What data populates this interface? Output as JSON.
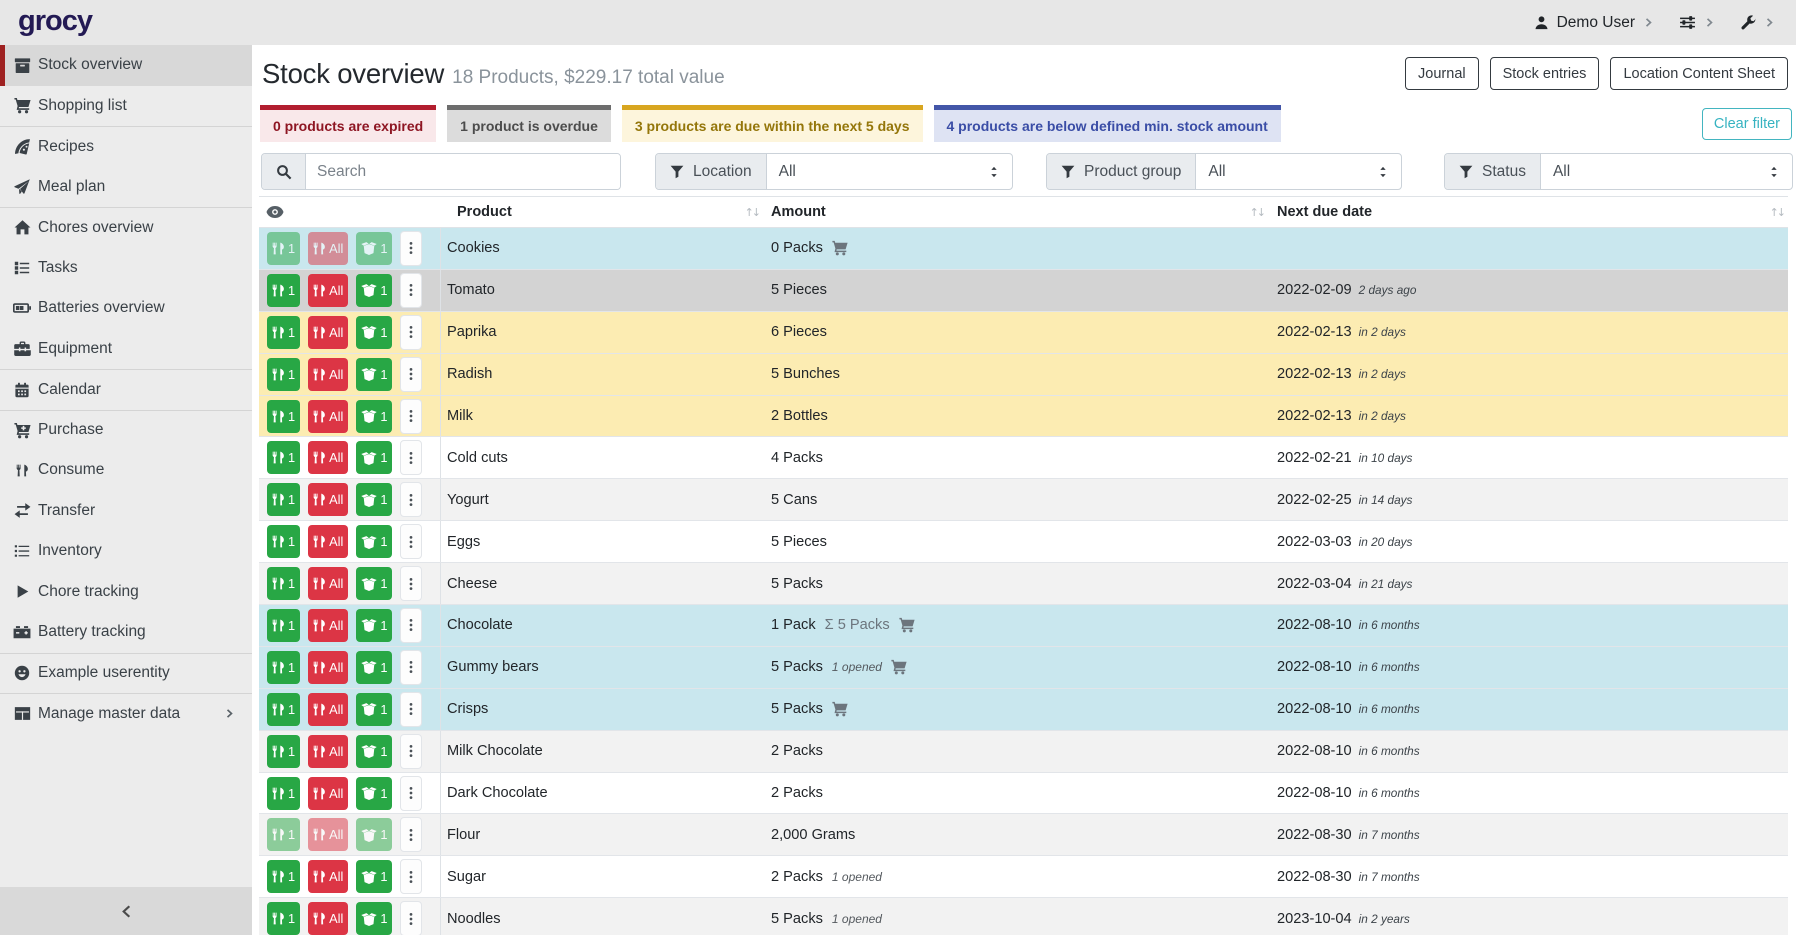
{
  "topbar": {
    "logo": "grocy",
    "user_label": "Demo User",
    "user_icon": "user-icon",
    "menus": [
      {
        "icon": "sliders-icon"
      },
      {
        "icon": "wrench-icon"
      }
    ]
  },
  "sidebar": {
    "items": [
      {
        "label": "Stock overview",
        "icon": "boxes-icon",
        "active": true
      },
      {
        "label": "Shopping list",
        "icon": "cart-icon"
      },
      {
        "label": "Recipes",
        "icon": "pizza-icon",
        "group_start": true
      },
      {
        "label": "Meal plan",
        "icon": "paper-plane-icon"
      },
      {
        "label": "Chores overview",
        "icon": "home-icon",
        "group_start": true
      },
      {
        "label": "Tasks",
        "icon": "tasks-icon"
      },
      {
        "label": "Batteries overview",
        "icon": "battery-icon"
      },
      {
        "label": "Equipment",
        "icon": "toolbox-icon"
      },
      {
        "label": "Calendar",
        "icon": "calendar-icon",
        "group_start": true
      },
      {
        "label": "Purchase",
        "icon": "cart-plus-icon",
        "group_start": true
      },
      {
        "label": "Consume",
        "icon": "utensils-icon"
      },
      {
        "label": "Transfer",
        "icon": "transfer-icon"
      },
      {
        "label": "Inventory",
        "icon": "list-icon"
      },
      {
        "label": "Chore tracking",
        "icon": "play-icon"
      },
      {
        "label": "Battery tracking",
        "icon": "car-battery-icon"
      },
      {
        "label": "Example userentity",
        "icon": "smiley-icon",
        "group_start": true
      },
      {
        "label": "Manage master data",
        "icon": "table-icon",
        "group_start": true,
        "chevron": true
      }
    ]
  },
  "header": {
    "title": "Stock overview",
    "subtitle": "18 Products, $229.17 total value",
    "buttons": [
      "Journal",
      "Stock entries",
      "Location Content Sheet"
    ]
  },
  "status_badges": [
    {
      "text": "0 products are expired",
      "type": "expired"
    },
    {
      "text": "1 product is overdue",
      "type": "overdue"
    },
    {
      "text": "3 products are due within the next 5 days",
      "type": "due-soon"
    },
    {
      "text": "4 products are below defined min. stock amount",
      "type": "below-min"
    }
  ],
  "clear_filter_label": "Clear filter",
  "filters": {
    "search_placeholder": "Search",
    "groups": [
      {
        "label": "Location",
        "value": "All"
      },
      {
        "label": "Product group",
        "value": "All"
      },
      {
        "label": "Status",
        "value": "All"
      }
    ]
  },
  "table": {
    "columns": [
      "Product",
      "Amount",
      "Next due date"
    ],
    "action_labels": {
      "consume_one": "1",
      "consume_all": "All",
      "open_one": "1"
    },
    "rows": [
      {
        "product": "Cookies",
        "amount": "0 Packs",
        "cart": true,
        "status": "below-min",
        "muted": true
      },
      {
        "product": "Tomato",
        "amount": "5 Pieces",
        "date": "2022-02-09",
        "note": "2 days ago",
        "status": "overdue"
      },
      {
        "product": "Paprika",
        "amount": "6 Pieces",
        "date": "2022-02-13",
        "note": "in 2 days",
        "status": "due-soon"
      },
      {
        "product": "Radish",
        "amount": "5 Bunches",
        "date": "2022-02-13",
        "note": "in 2 days",
        "status": "due-soon"
      },
      {
        "product": "Milk",
        "amount": "2 Bottles",
        "date": "2022-02-13",
        "note": "in 2 days",
        "status": "due-soon"
      },
      {
        "product": "Cold cuts",
        "amount": "4 Packs",
        "date": "2022-02-21",
        "note": "in 10 days"
      },
      {
        "product": "Yogurt",
        "amount": "5 Cans",
        "date": "2022-02-25",
        "note": "in 14 days"
      },
      {
        "product": "Eggs",
        "amount": "5 Pieces",
        "date": "2022-03-03",
        "note": "in 20 days"
      },
      {
        "product": "Cheese",
        "amount": "5 Packs",
        "date": "2022-03-04",
        "note": "in 21 days"
      },
      {
        "product": "Chocolate",
        "amount": "1 Pack",
        "aggregate": "Σ 5 Packs",
        "cart": true,
        "date": "2022-08-10",
        "note": "in 6 months",
        "status": "below-min"
      },
      {
        "product": "Gummy bears",
        "amount": "5 Packs",
        "opened": "1 opened",
        "cart": true,
        "date": "2022-08-10",
        "note": "in 6 months",
        "status": "below-min"
      },
      {
        "product": "Crisps",
        "amount": "5 Packs",
        "cart": true,
        "date": "2022-08-10",
        "note": "in 6 months",
        "status": "below-min"
      },
      {
        "product": "Milk Chocolate",
        "amount": "2 Packs",
        "date": "2022-08-10",
        "note": "in 6 months"
      },
      {
        "product": "Dark Chocolate",
        "amount": "2 Packs",
        "date": "2022-08-10",
        "note": "in 6 months"
      },
      {
        "product": "Flour",
        "amount": "2,000 Grams",
        "date": "2022-08-30",
        "note": "in 7 months",
        "muted": true
      },
      {
        "product": "Sugar",
        "amount": "2 Packs",
        "opened": "1 opened",
        "date": "2022-08-30",
        "note": "in 7 months"
      },
      {
        "product": "Noodles",
        "amount": "5 Packs",
        "opened": "1 opened",
        "date": "2023-10-04",
        "note": "in 2 years"
      }
    ]
  },
  "colors": {
    "accent_green": "#28a745",
    "accent_red": "#dc3545",
    "row_below_min": "#c9e7ee",
    "row_overdue": "#d3d3d3",
    "row_due_soon": "#fcecb2",
    "sidebar_active_border": "#9e2121",
    "logo": "#231a54"
  }
}
